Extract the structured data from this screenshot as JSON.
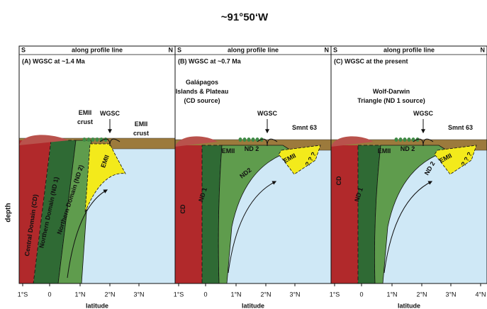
{
  "title": "~91°50‘W",
  "y_axis_label": "depth",
  "panels": [
    {
      "left": "S",
      "center": "along profile line",
      "right": "N",
      "title": "(A) WGSC at ~1.4 Ma",
      "labels": [
        [
          "EMII",
          "crust"
        ],
        [
          "WGSC"
        ],
        [
          "EMII",
          "crust"
        ],
        [
          "EMII"
        ],
        [
          "Central Domain (CD)"
        ],
        [
          "Northern Domain (ND 1)"
        ],
        [
          "Northern Domain (ND 2)"
        ]
      ],
      "x_ticks": [
        "1°S",
        "0",
        "1°N",
        "2°N",
        "3°N"
      ],
      "x_axis_label": "latitude"
    },
    {
      "left": "S",
      "center": "along profile line",
      "right": "N",
      "title": "(B) WGSC at ~0.7 Ma",
      "labels": [
        [
          "Galápagos",
          "Islands & Plateau",
          "(CD source)"
        ],
        [
          "WGSC"
        ],
        [
          "Smnt 63"
        ],
        [
          "EMII"
        ],
        [
          "ND 2"
        ],
        [
          "ND2"
        ],
        [
          "EMII"
        ],
        [
          "CD"
        ],
        [
          "ND 1"
        ],
        [
          "? ? ?"
        ]
      ],
      "x_ticks": [
        "1°S",
        "0",
        "1°N",
        "2°N",
        "3°N"
      ],
      "x_axis_label": "latitude"
    },
    {
      "left": "S",
      "center": "along profile line",
      "right": "N",
      "title": "(C) WGSC at the present",
      "labels": [
        [
          "Wolf-Darwin",
          "Triangle (ND 1 source)"
        ],
        [
          "WGSC"
        ],
        [
          "Smnt 63"
        ],
        [
          "EMII"
        ],
        [
          "ND 2"
        ],
        [
          "ND 2"
        ],
        [
          "EMII"
        ],
        [
          "CD"
        ],
        [
          "ND 1"
        ],
        [
          "? ? ?"
        ]
      ],
      "x_ticks": [
        "1°S",
        "0",
        "1°N",
        "2°N",
        "3°N",
        "4°N"
      ],
      "x_axis_label": "latitude"
    }
  ]
}
